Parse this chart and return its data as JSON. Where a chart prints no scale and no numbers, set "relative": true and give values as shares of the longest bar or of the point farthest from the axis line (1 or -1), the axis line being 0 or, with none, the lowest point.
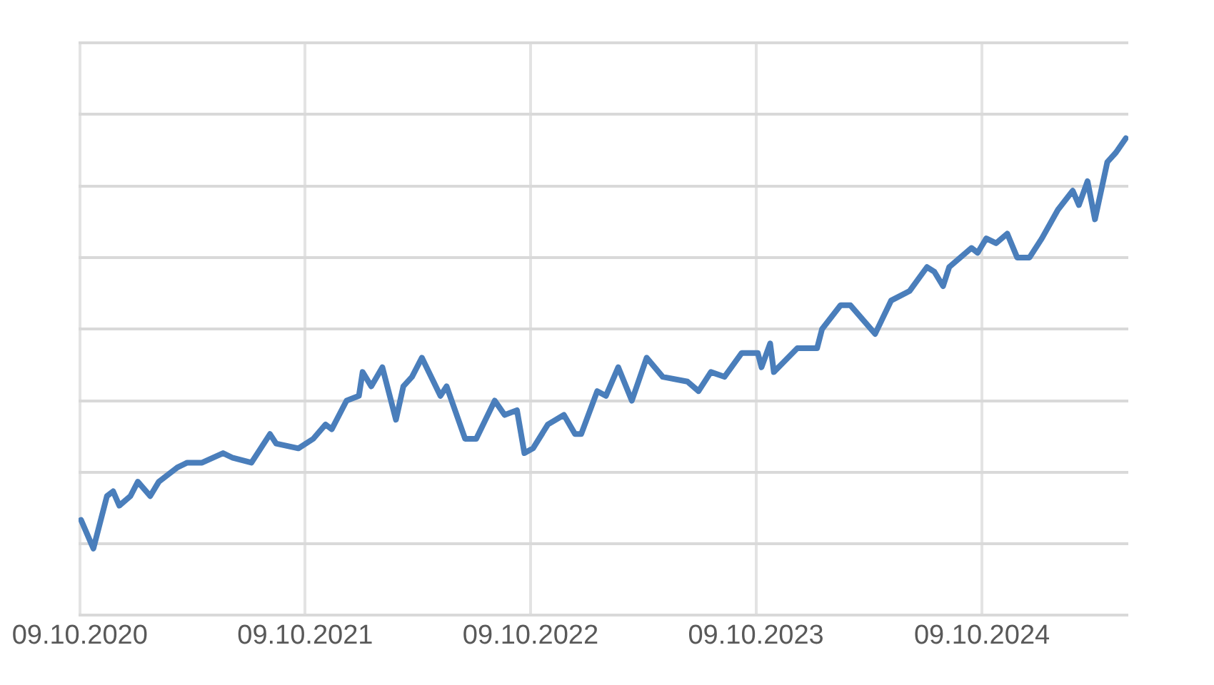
{
  "chart_data": {
    "type": "line",
    "relative": true,
    "grid": true,
    "legend": false,
    "marker": "none",
    "line_style": "solid",
    "xlim": [
      "2020-10-07",
      "2025-06-03"
    ],
    "xticks": [
      {
        "value": "2020-10-09",
        "label": "09.10.2020"
      },
      {
        "value": "2021-10-09",
        "label": "09.10.2021"
      },
      {
        "value": "2022-10-09",
        "label": "09.10.2022"
      },
      {
        "value": "2023-10-09",
        "label": "09.10.2023"
      },
      {
        "value": "2024-10-09",
        "label": "09.10.2024"
      }
    ],
    "x": [
      "2020-10-11",
      "2020-10-31",
      "2020-11-22",
      "2020-12-02",
      "2020-12-12",
      "2020-12-30",
      "2021-01-11",
      "2021-01-31",
      "2021-02-14",
      "2021-03-16",
      "2021-04-01",
      "2021-04-25",
      "2021-05-29",
      "2021-06-14",
      "2021-07-14",
      "2021-08-13",
      "2021-08-23",
      "2021-09-28",
      "2021-10-22",
      "2021-11-11",
      "2021-11-21",
      "2021-12-15",
      "2022-01-04",
      "2022-01-10",
      "2022-01-24",
      "2022-02-11",
      "2022-03-05",
      "2022-03-17",
      "2022-03-31",
      "2022-04-16",
      "2022-05-16",
      "2022-05-26",
      "2022-06-25",
      "2022-07-13",
      "2022-08-12",
      "2022-08-28",
      "2022-09-17",
      "2022-09-29",
      "2022-10-13",
      "2022-11-06",
      "2022-12-02",
      "2022-12-20",
      "2022-12-30",
      "2023-01-25",
      "2023-02-08",
      "2023-02-28",
      "2023-03-22",
      "2023-04-15",
      "2023-05-11",
      "2023-06-20",
      "2023-07-08",
      "2023-07-28",
      "2023-08-19",
      "2023-09-16",
      "2023-10-12",
      "2023-10-18",
      "2023-11-01",
      "2023-11-07",
      "2023-12-15",
      "2024-01-16",
      "2024-01-24",
      "2024-02-23",
      "2024-03-10",
      "2024-04-19",
      "2024-05-15",
      "2024-06-14",
      "2024-07-12",
      "2024-07-24",
      "2024-08-07",
      "2024-08-17",
      "2024-09-22",
      "2024-10-02",
      "2024-10-16",
      "2024-11-01",
      "2024-11-19",
      "2024-12-05",
      "2024-12-25",
      "2025-01-14",
      "2025-02-09",
      "2025-03-05",
      "2025-03-15",
      "2025-03-29",
      "2025-04-10",
      "2025-04-30",
      "2025-05-14",
      "2025-05-30"
    ],
    "series": [
      {
        "color": "#4a7ebb",
        "values": [
          0.2,
          0.14,
          0.25,
          0.26,
          0.23,
          0.25,
          0.28,
          0.25,
          0.28,
          0.31,
          0.32,
          0.32,
          0.34,
          0.33,
          0.32,
          0.38,
          0.36,
          0.35,
          0.37,
          0.4,
          0.39,
          0.45,
          0.46,
          0.51,
          0.48,
          0.52,
          0.41,
          0.48,
          0.5,
          0.54,
          0.46,
          0.48,
          0.37,
          0.37,
          0.45,
          0.42,
          0.43,
          0.34,
          0.35,
          0.4,
          0.42,
          0.38,
          0.38,
          0.47,
          0.46,
          0.52,
          0.45,
          0.54,
          0.5,
          0.49,
          0.47,
          0.51,
          0.5,
          0.55,
          0.55,
          0.52,
          0.57,
          0.51,
          0.56,
          0.56,
          0.6,
          0.65,
          0.65,
          0.59,
          0.66,
          0.68,
          0.73,
          0.72,
          0.69,
          0.73,
          0.77,
          0.76,
          0.79,
          0.78,
          0.8,
          0.75,
          0.75,
          0.79,
          0.85,
          0.89,
          0.86,
          0.91,
          0.83,
          0.95,
          0.97,
          1.0
        ]
      }
    ]
  }
}
